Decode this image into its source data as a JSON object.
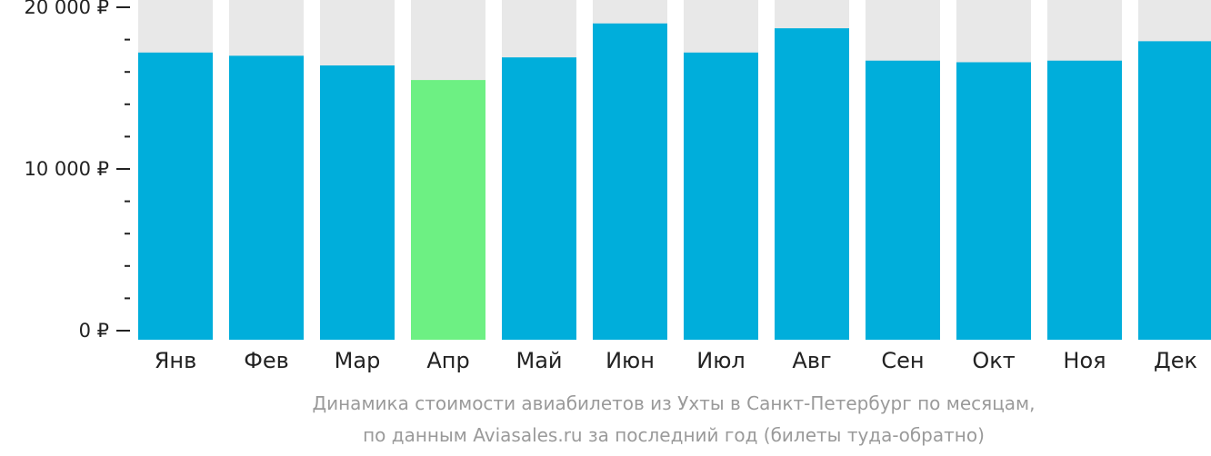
{
  "chart_data": {
    "type": "bar",
    "categories": [
      "Янв",
      "Фев",
      "Мар",
      "Апр",
      "Май",
      "Июн",
      "Июл",
      "Авг",
      "Сен",
      "Окт",
      "Ноя",
      "Дек"
    ],
    "values": [
      17200,
      17000,
      16400,
      15500,
      16900,
      19000,
      17200,
      18700,
      16700,
      16600,
      16700,
      17900
    ],
    "highlight_index": 3,
    "ylim": [
      0,
      20000
    ],
    "y_ticks": [
      {
        "value": 0,
        "label": "0 ₽"
      },
      {
        "value": 10000,
        "label": "10 000 ₽"
      },
      {
        "value": 20000,
        "label": "20 000 ₽"
      }
    ],
    "minor_tick_step": 2000,
    "caption_line1": "Динамика стоимости авиабилетов из Ухты в Санкт-Петербург по месяцам,",
    "caption_line2": "по данным Aviasales.ru за последний год (билеты туда-обратно)",
    "colors": {
      "bar": "#00AEDB",
      "highlight": "#6DF083",
      "background_bar": "#E8E8E8",
      "axis": "#222222",
      "caption": "#9A9A9A"
    }
  }
}
